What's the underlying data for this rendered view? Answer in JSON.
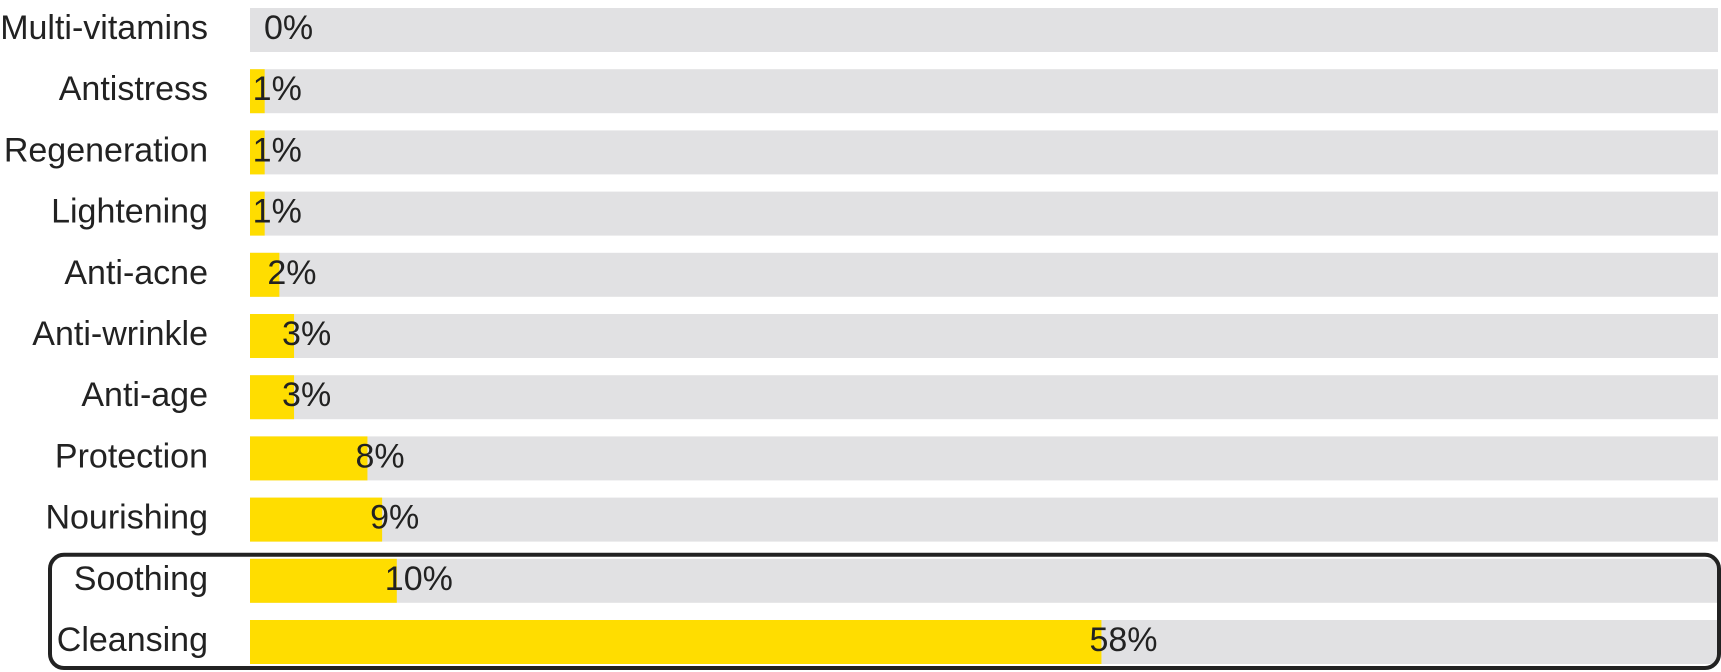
{
  "chart_data": {
    "type": "bar",
    "orientation": "horizontal",
    "categories": [
      "Multi-vitamins",
      "Antistress",
      "Regeneration",
      "Lightening",
      "Anti-acne",
      "Anti-wrinkle",
      "Anti-age",
      "Protection",
      "Nourishing",
      "Soothing",
      "Cleansing"
    ],
    "values": [
      0,
      1,
      1,
      1,
      2,
      3,
      3,
      8,
      9,
      10,
      58
    ],
    "value_labels": [
      "0%",
      "1%",
      "1%",
      "1%",
      "2%",
      "3%",
      "3%",
      "8%",
      "9%",
      "10%",
      "58%"
    ],
    "highlighted": [
      "Soothing",
      "Cleansing"
    ],
    "xlim": [
      0,
      100
    ],
    "title": "",
    "xlabel": "",
    "ylabel": "",
    "grid": false,
    "legend": "none"
  },
  "colors": {
    "bar": "#FFDD00",
    "track": "#E1E1E3",
    "text": "#222222",
    "highlight_border": "#222222"
  }
}
